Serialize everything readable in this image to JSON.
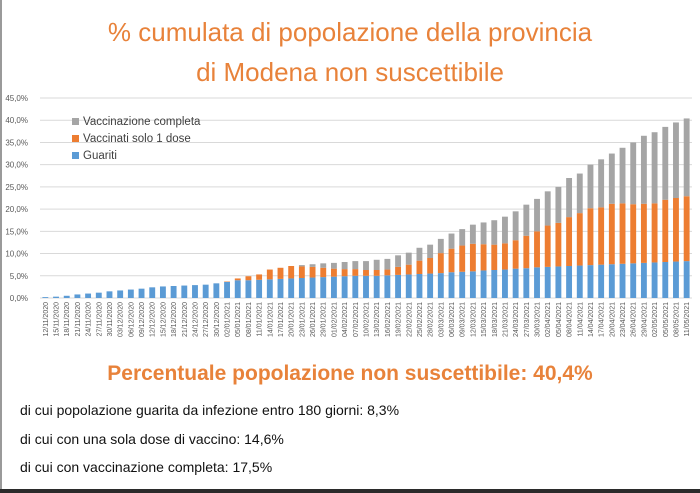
{
  "title_line1": "% cumulata di popolazione della provincia",
  "title_line2": "di Modena non suscettibile",
  "summary": "Percentuale popolazione non suscettibile: 40,4%",
  "details": [
    "di cui popolazione guarita da infezione entro 180 giorni: 8,3%",
    "di cui con una sola dose di vaccino: 14,6%",
    "di cui con vaccinazione completa: 17,5%"
  ],
  "chart_data": {
    "type": "bar",
    "stacked": true,
    "title": "",
    "xlabel": "",
    "ylabel": "",
    "ylim": [
      0,
      45
    ],
    "yticks": [
      "0,0%",
      "5,0%",
      "10,0%",
      "15,0%",
      "20,0%",
      "25,0%",
      "30,0%",
      "35,0%",
      "40,0%",
      "45,0%"
    ],
    "grid": true,
    "legend": "top-left",
    "categories": [
      "12/11/2020",
      "15/11/2020",
      "18/11/2020",
      "21/11/2020",
      "24/11/2020",
      "27/11/2020",
      "30/11/2020",
      "03/12/2020",
      "06/12/2020",
      "09/12/2020",
      "12/12/2020",
      "15/12/2020",
      "18/12/2020",
      "21/12/2020",
      "24/12/2020",
      "27/12/2020",
      "30/12/2020",
      "02/01/2021",
      "05/01/2021",
      "08/01/2021",
      "11/01/2021",
      "14/01/2021",
      "17/01/2021",
      "20/01/2021",
      "23/01/2021",
      "26/01/2021",
      "29/01/2021",
      "01/02/2021",
      "04/02/2021",
      "07/02/2021",
      "10/02/2021",
      "13/02/2021",
      "16/02/2021",
      "19/02/2021",
      "22/02/2021",
      "25/02/2021",
      "28/02/2021",
      "03/03/2021",
      "06/03/2021",
      "09/03/2021",
      "12/03/2021",
      "15/03/2021",
      "18/03/2021",
      "21/03/2021",
      "24/03/2021",
      "27/03/2021",
      "30/03/2021",
      "02/04/2021",
      "05/04/2021",
      "08/04/2021",
      "11/04/2021",
      "14/04/2021",
      "17/04/2021",
      "20/04/2021",
      "23/04/2021",
      "26/04/2021",
      "29/04/2021",
      "02/05/2021",
      "05/05/2021",
      "08/05/2021",
      "11/05/2021"
    ],
    "series": [
      {
        "name": "Guariti",
        "color": "#5b9bd5",
        "values": [
          0.2,
          0.3,
          0.5,
          0.8,
          1.0,
          1.2,
          1.5,
          1.7,
          1.9,
          2.1,
          2.4,
          2.6,
          2.7,
          2.8,
          2.9,
          3.0,
          3.3,
          3.6,
          4.0,
          4.0,
          4.1,
          4.2,
          4.3,
          4.4,
          4.5,
          4.6,
          4.7,
          4.8,
          4.9,
          5.0,
          5.0,
          5.0,
          5.1,
          5.2,
          5.3,
          5.4,
          5.5,
          5.6,
          5.8,
          5.9,
          6.0,
          6.2,
          6.3,
          6.4,
          6.6,
          6.7,
          6.9,
          7.0,
          7.1,
          7.2,
          7.3,
          7.4,
          7.5,
          7.6,
          7.7,
          7.8,
          7.9,
          8.0,
          8.1,
          8.2,
          8.3
        ]
      },
      {
        "name": "Vaccinati solo 1 dose",
        "color": "#ed7d31",
        "values": [
          0,
          0,
          0,
          0,
          0,
          0,
          0,
          0,
          0,
          0,
          0,
          0,
          0,
          0,
          0,
          0,
          0,
          0.1,
          0.4,
          0.9,
          1.2,
          2.2,
          2.5,
          2.8,
          2.6,
          2.4,
          2.1,
          1.8,
          1.6,
          1.5,
          1.3,
          1.3,
          1.3,
          1.8,
          2.2,
          3.0,
          3.5,
          4.5,
          5.3,
          5.9,
          6.2,
          5.9,
          5.7,
          5.9,
          6.4,
          7.3,
          8.1,
          9.3,
          9.8,
          11.0,
          11.8,
          12.8,
          12.9,
          13.6,
          13.6,
          13.3,
          13.3,
          13.3,
          14.0,
          14.3,
          14.6
        ]
      },
      {
        "name": "Vaccinazione completa",
        "color": "#a5a5a5",
        "values": [
          0,
          0,
          0,
          0,
          0,
          0,
          0,
          0,
          0,
          0,
          0,
          0,
          0,
          0,
          0,
          0,
          0,
          0,
          0,
          0,
          0,
          0,
          0,
          0,
          0.3,
          0.6,
          1.0,
          1.3,
          1.6,
          1.8,
          2.0,
          2.3,
          2.4,
          2.6,
          2.7,
          2.9,
          3.0,
          3.2,
          3.4,
          3.7,
          4.3,
          4.9,
          5.5,
          6.0,
          6.5,
          7.0,
          7.3,
          7.7,
          8.1,
          8.8,
          8.9,
          9.8,
          10.8,
          11.3,
          12.5,
          13.9,
          15.3,
          16.0,
          16.4,
          17.0,
          17.5
        ]
      }
    ]
  }
}
